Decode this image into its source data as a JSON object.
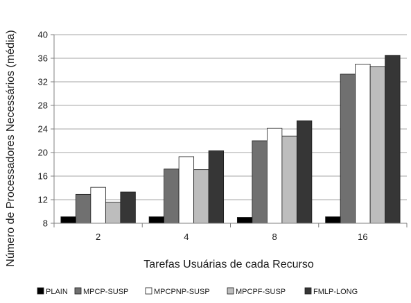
{
  "chart_data": {
    "type": "bar",
    "categories": [
      "2",
      "4",
      "8",
      "16"
    ],
    "series": [
      {
        "name": "PLAIN",
        "values": [
          9.1,
          9.1,
          9.0,
          9.1
        ]
      },
      {
        "name": "MPCP-SUSP",
        "values": [
          12.9,
          17.2,
          22.0,
          33.3
        ]
      },
      {
        "name": "MPCPNP-SUSP",
        "values": [
          14.1,
          19.3,
          24.1,
          35.0
        ]
      },
      {
        "name": "MPCPF-SUSP",
        "values": [
          11.6,
          17.1,
          22.8,
          34.6
        ]
      },
      {
        "name": "FMLP-LONG",
        "values": [
          13.3,
          20.3,
          25.4,
          36.5
        ]
      }
    ],
    "xlabel": "Tarefas Usuárias de cada Recurso",
    "ylabel": "Número de Processadores Necessários (média)",
    "ylim": [
      8,
      40
    ],
    "yticks": [
      "8",
      "12",
      "16",
      "20",
      "24",
      "28",
      "32",
      "36",
      "40"
    ],
    "grid": "horizontal",
    "legend_position": "bottom",
    "colors": {
      "PLAIN": "#000000",
      "MPCP-SUSP": "#707070",
      "MPCPNP-SUSP": "#ffffff",
      "MPCPF-SUSP": "#bdbdbd",
      "FMLP-LONG": "#363636"
    }
  }
}
